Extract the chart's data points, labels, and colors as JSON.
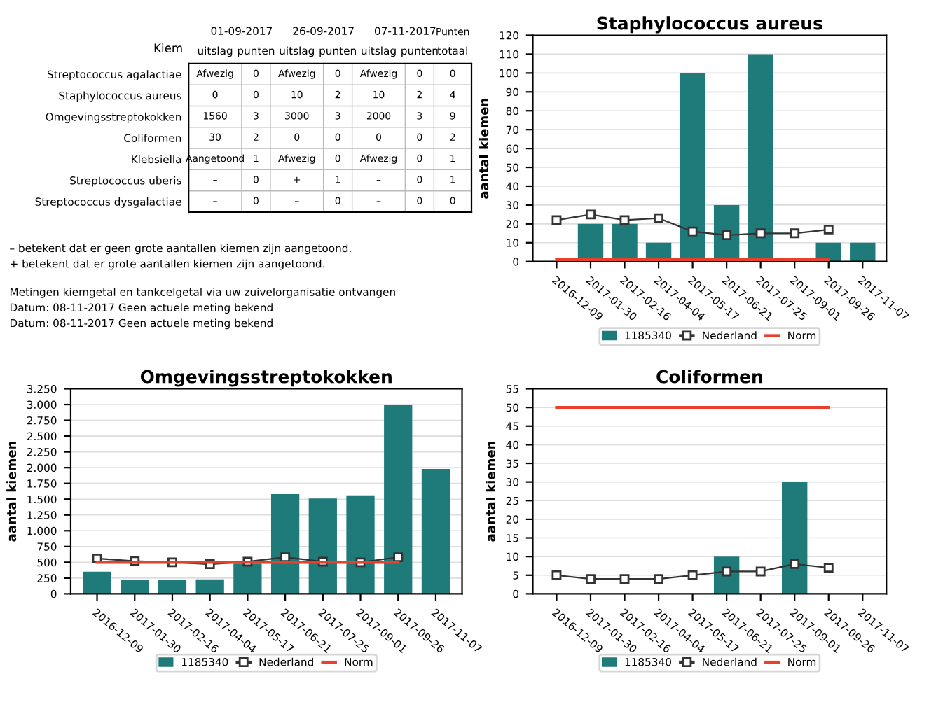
{
  "chart_data": [
    {
      "type": "heatmap",
      "ylabel": "Kiem",
      "categories": [
        "uitslag",
        "punten",
        "uitslag",
        "punten",
        "uitslag",
        "punten",
        "totaal"
      ],
      "y_categories": [
        "Streptococcus agalactiae",
        "Staphylococcus aureus",
        "Omgevingsstreptokokken",
        "Coliformen",
        "Klebsiella",
        "Streptococcus uberis",
        "Streptococcus dysgalactiae"
      ],
      "cells": [
        [
          null,
          0,
          null,
          0,
          null,
          0,
          0
        ],
        [
          0,
          0,
          10,
          2,
          10,
          2,
          4
        ],
        [
          1560,
          3,
          3000,
          3,
          2000,
          3,
          9
        ],
        [
          30,
          2,
          0,
          0,
          0,
          0,
          2
        ],
        [
          null,
          1,
          null,
          0,
          null,
          0,
          1
        ],
        [
          null,
          0,
          null,
          1,
          null,
          0,
          1
        ],
        [
          null,
          0,
          null,
          0,
          null,
          0,
          0
        ]
      ],
      "cell_labels": [
        [
          "Afwezig",
          "0",
          "Afwezig",
          "0",
          "Afwezig",
          "0",
          "0"
        ],
        [
          "0",
          "0",
          "10",
          "2",
          "10",
          "2",
          "4"
        ],
        [
          "1560",
          "3",
          "3000",
          "3",
          "2000",
          "3",
          "9"
        ],
        [
          "30",
          "2",
          "0",
          "0",
          "0",
          "0",
          "2"
        ],
        [
          "Aangetoond",
          "1",
          "Afwezig",
          "0",
          "Afwezig",
          "0",
          "1"
        ],
        [
          "–",
          "0",
          "+",
          "1",
          "–",
          "0",
          "1"
        ],
        [
          "–",
          "0",
          "–",
          "0",
          "–",
          "0",
          "0"
        ]
      ],
      "annotations": [
        "01-09-2017",
        "26-09-2017",
        "07-11-2017",
        "Punten",
        "– betekent dat er geen grote aantallen kiemen zijn aangetoond.",
        "+ betekent dat er grote aantallen kiemen zijn aangetoond.",
        "Metingen kiemgetal en tankcelgetal via uw zuivelorganisatie ontvangen",
        "Datum: 08-11-2017 Geen actuele meting bekend",
        "Datum: 08-11-2017 Geen actuele meting bekend"
      ]
    },
    {
      "type": "bar",
      "title": "Staphylococcus aureus",
      "ylabel": "aantal kiemen",
      "categories": [
        "2016-12-09",
        "2017-01-30",
        "2017-02-16",
        "2017-04-04",
        "2017-05-17",
        "2017-06-21",
        "2017-07-25",
        "2017-09-01",
        "2017-09-26",
        "2017-11-07"
      ],
      "series": [
        {
          "name": "1185340",
          "type": "bar",
          "color": "#1f7a7a",
          "values": [
            null,
            20,
            20,
            10,
            100,
            30,
            110,
            null,
            10,
            10
          ]
        },
        {
          "name": "Nederland",
          "type": "line",
          "color": "#333333",
          "marker": "square",
          "values": [
            22,
            25,
            22,
            23,
            16,
            14,
            15,
            15,
            17,
            null
          ]
        },
        {
          "name": "Norm",
          "type": "line",
          "color": "#e8402a",
          "values": [
            1,
            1,
            1,
            1,
            1,
            1,
            1,
            1,
            1,
            null
          ]
        }
      ],
      "ylim": [
        0,
        120
      ],
      "yticks": [
        0,
        10,
        20,
        30,
        40,
        50,
        60,
        70,
        80,
        90,
        100,
        110,
        120
      ],
      "grid": "y",
      "legend": "bottom"
    },
    {
      "type": "bar",
      "title": "Omgevingsstreptokokken",
      "ylabel": "aantal kiemen",
      "categories": [
        "2016-12-09",
        "2017-01-30",
        "2017-02-16",
        "2017-04-04",
        "2017-05-17",
        "2017-06-21",
        "2017-07-25",
        "2017-09-01",
        "2017-09-26",
        "2017-11-07"
      ],
      "series": [
        {
          "name": "1185340",
          "type": "bar",
          "color": "#1f7a7a",
          "values": [
            350,
            220,
            220,
            230,
            480,
            1580,
            1510,
            1560,
            3000,
            1980
          ]
        },
        {
          "name": "Nederland",
          "type": "line",
          "color": "#333333",
          "marker": "square",
          "values": [
            560,
            520,
            500,
            470,
            510,
            580,
            510,
            500,
            580,
            null
          ]
        },
        {
          "name": "Norm",
          "type": "line",
          "color": "#e8402a",
          "values": [
            500,
            500,
            500,
            500,
            500,
            500,
            500,
            500,
            500,
            null
          ]
        }
      ],
      "ylim": [
        0,
        3250
      ],
      "yticks": [
        0,
        250,
        500,
        750,
        {
          "value": 1000,
          "label": "1.000"
        },
        {
          "value": 1250,
          "label": "1.250"
        },
        {
          "value": 1500,
          "label": "1.500"
        },
        {
          "value": 1750,
          "label": "1.750"
        },
        {
          "value": 2000,
          "label": "2.000"
        },
        {
          "value": 2250,
          "label": "2.250"
        },
        {
          "value": 2500,
          "label": "2.500"
        },
        {
          "value": 2750,
          "label": "2.750"
        },
        {
          "value": 3000,
          "label": "3.000"
        },
        {
          "value": 3250,
          "label": "3.250"
        }
      ],
      "grid": "y",
      "legend": "bottom"
    },
    {
      "type": "bar",
      "title": "Coliformen",
      "ylabel": "aantal kiemen",
      "categories": [
        "2016-12-09",
        "2017-01-30",
        "2017-02-16",
        "2017-04-04",
        "2017-05-17",
        "2017-06-21",
        "2017-07-25",
        "2017-09-01",
        "2017-09-26",
        "2017-11-07"
      ],
      "series": [
        {
          "name": "1185340",
          "type": "bar",
          "color": "#1f7a7a",
          "values": [
            null,
            null,
            null,
            null,
            null,
            10,
            null,
            30,
            null,
            null
          ]
        },
        {
          "name": "Nederland",
          "type": "line",
          "color": "#333333",
          "marker": "square",
          "values": [
            5,
            4,
            4,
            4,
            5,
            6,
            6,
            8,
            7,
            null
          ]
        },
        {
          "name": "Norm",
          "type": "line",
          "color": "#e8402a",
          "values": [
            50,
            50,
            50,
            50,
            50,
            50,
            50,
            50,
            50,
            null
          ]
        }
      ],
      "ylim": [
        0,
        55
      ],
      "yticks": [
        0,
        5,
        10,
        15,
        20,
        25,
        30,
        35,
        40,
        45,
        50,
        55
      ],
      "grid": "y",
      "legend": "bottom"
    }
  ]
}
